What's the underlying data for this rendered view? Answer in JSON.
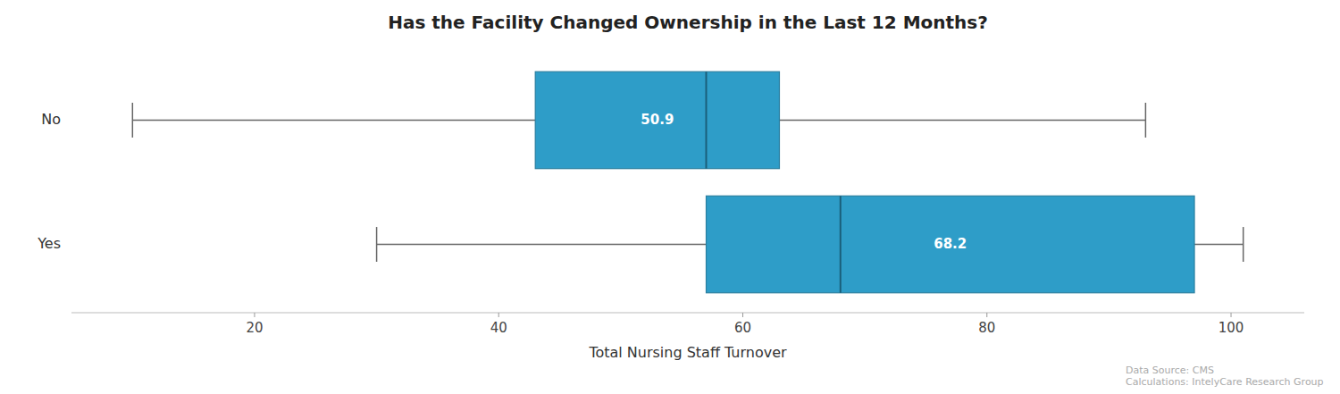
{
  "chart_data": {
    "type": "box",
    "orientation": "horizontal",
    "title": "Has the Facility Changed Ownership in the Last 12 Months?",
    "xlabel": "Total Nursing Staff Turnover",
    "annotation": "Data Source: CMS\nCalculations: IntelyCare Research Group",
    "categories": [
      "Yes",
      "No"
    ],
    "whisker_low": [
      30,
      10
    ],
    "q1": [
      57,
      43
    ],
    "median": [
      68,
      57
    ],
    "q3": [
      97,
      63
    ],
    "whisker_high": [
      101,
      93
    ],
    "means": [
      68.2,
      50.9
    ],
    "data_labels": true,
    "color": "#2e9dc8",
    "xlim": [
      5,
      106
    ],
    "xticks": [
      20,
      40,
      60,
      80,
      100
    ],
    "grid": false
  }
}
